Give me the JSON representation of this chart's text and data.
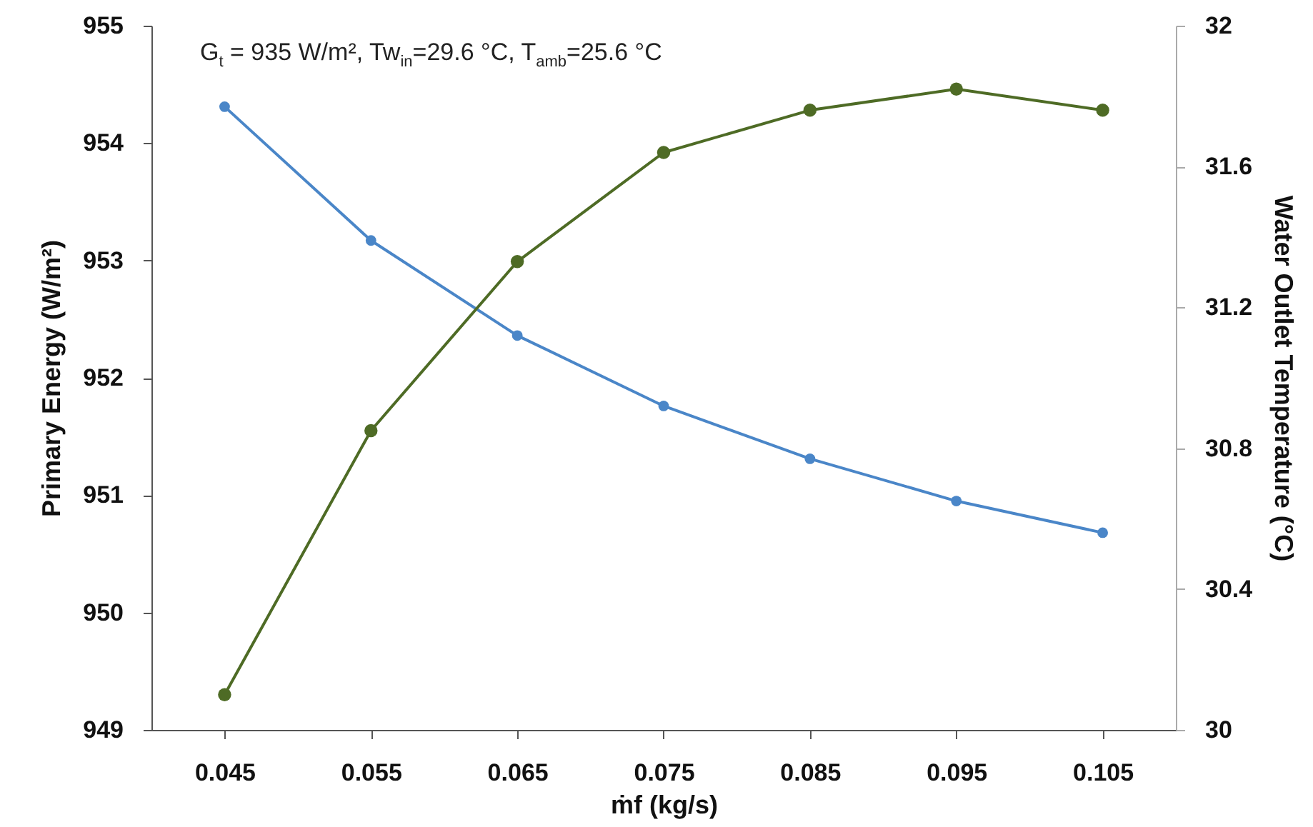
{
  "chart_data": {
    "type": "line",
    "xlabel": "ṁf (kg/s)",
    "ylabel": "Primary Energy (W/m²)",
    "y2label": "Water Outlet Temperature (°C)",
    "annotations": [
      "G$_{t}$ = 935 W/m², Tw$_{in}$=29.6 °C, T$_{amb}$=25.6 °C"
    ],
    "x": [
      0.045,
      0.055,
      0.065,
      0.075,
      0.085,
      0.095,
      0.105
    ],
    "xlim": [
      0.04,
      0.11
    ],
    "xticks": [
      0.045,
      0.055,
      0.065,
      0.075,
      0.085,
      0.095,
      0.105
    ],
    "ylim": [
      949,
      955
    ],
    "yticks": [
      949,
      950,
      951,
      952,
      953,
      954,
      955
    ],
    "y2lim": [
      30,
      32
    ],
    "y2ticks": [
      30,
      30.4,
      30.8,
      31.2,
      31.6,
      32
    ],
    "marker": "circle",
    "line_style": "solid",
    "series": [
      {
        "color": "#4a86c8",
        "values": [
          954.31,
          953.17,
          952.36,
          951.76,
          951.31,
          950.95,
          950.68
        ]
      },
      {
        "color": "#4e6b25",
        "axis": "y2",
        "values": [
          30.1,
          30.85,
          31.33,
          31.64,
          31.76,
          31.82,
          31.76
        ]
      }
    ]
  }
}
